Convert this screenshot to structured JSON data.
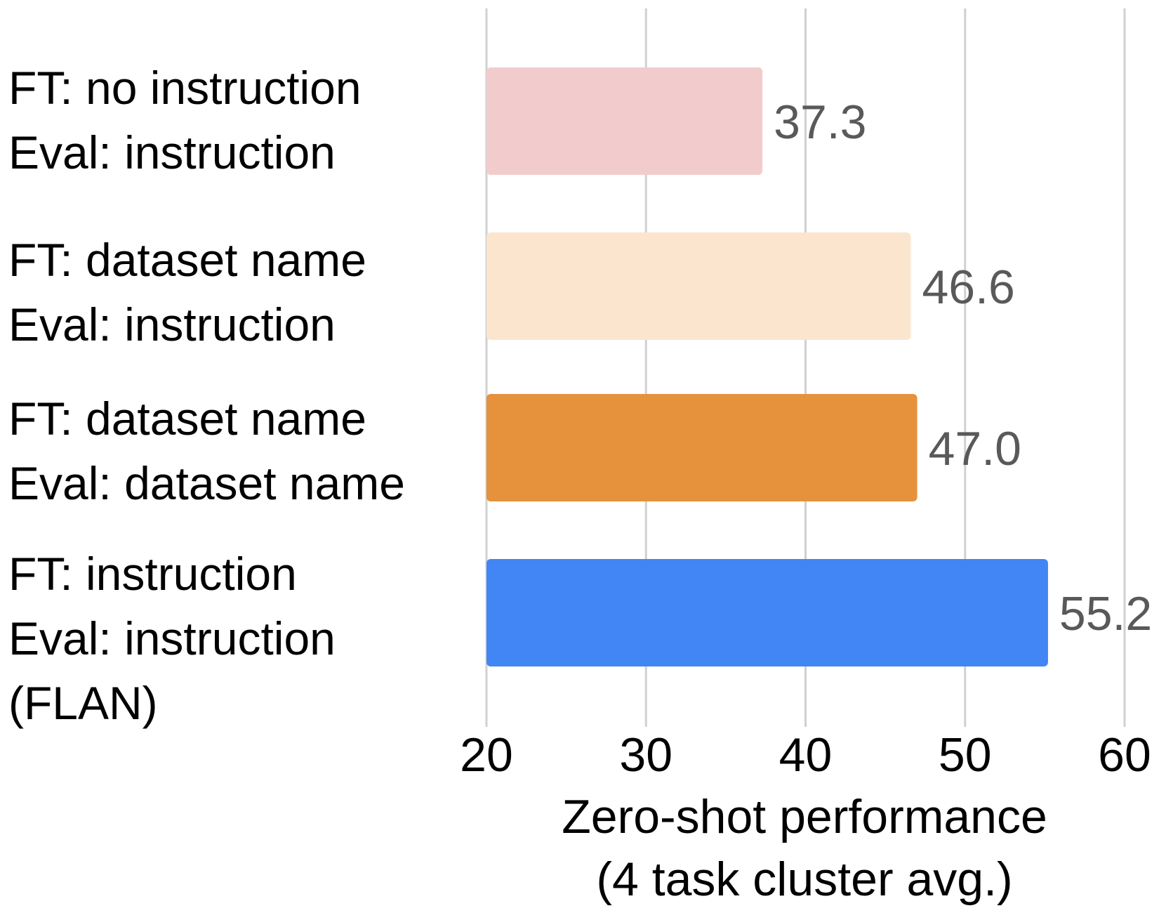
{
  "chart_data": {
    "type": "bar",
    "orientation": "horizontal",
    "categories": [
      [
        "FT: no instruction",
        "Eval: instruction"
      ],
      [
        "FT: dataset name",
        "Eval: instruction"
      ],
      [
        "FT: dataset name",
        "Eval: dataset name"
      ],
      [
        "FT: instruction",
        "Eval: instruction",
        "(FLAN)"
      ]
    ],
    "values": [
      37.3,
      46.6,
      47.0,
      55.2
    ],
    "value_labels": [
      "37.3",
      "46.6",
      "47.0",
      "55.2"
    ],
    "colors": [
      "#f2cccc",
      "#fce5cf",
      "#e6913b",
      "#4285f4"
    ],
    "xlabel": [
      "Zero-shot performance",
      "(4 task cluster avg.)"
    ],
    "xlim": [
      20,
      60
    ],
    "xticks": [
      20,
      30,
      40,
      50,
      60
    ],
    "xtick_labels": [
      "20",
      "30",
      "40",
      "50",
      "60"
    ],
    "grid": "vertical",
    "grid_color": "#d0d0d0",
    "value_label_color": "#595959",
    "text_color": "#000000"
  }
}
